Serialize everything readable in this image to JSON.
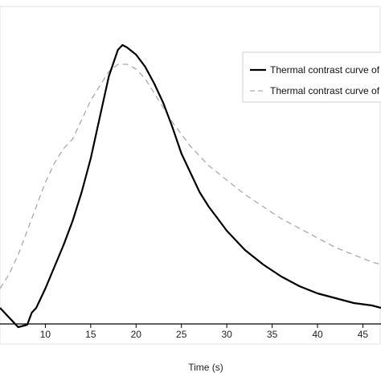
{
  "chart_data": {
    "type": "line",
    "xlabel": "Time (s)",
    "xlim": [
      5,
      47
    ],
    "ylim": [
      -0.15,
      1.25
    ],
    "x_ticks": [
      10,
      15,
      20,
      25,
      30,
      35,
      40,
      45
    ],
    "x_tick_labels": [
      "10",
      "15",
      "20",
      "25",
      "30",
      "35",
      "40",
      "45"
    ],
    "legend_position": "top-right",
    "grid": false,
    "series": [
      {
        "name": "Thermal contrast curve of t",
        "style": "solid",
        "color": "#000000",
        "x": [
          5,
          6,
          7,
          8,
          8.5,
          9,
          10,
          11,
          12,
          13,
          14,
          15,
          16,
          17,
          18,
          18.5,
          19,
          20,
          21,
          22,
          23,
          24,
          25,
          26,
          27,
          28,
          29,
          30,
          32,
          34,
          36,
          38,
          40,
          42,
          44,
          46,
          47
        ],
        "y": [
          0.0,
          -0.04,
          -0.08,
          -0.07,
          -0.02,
          0.0,
          0.08,
          0.17,
          0.26,
          0.36,
          0.48,
          0.62,
          0.79,
          0.96,
          1.07,
          1.09,
          1.08,
          1.05,
          1.0,
          0.93,
          0.85,
          0.75,
          0.64,
          0.56,
          0.48,
          0.42,
          0.37,
          0.32,
          0.24,
          0.18,
          0.13,
          0.09,
          0.06,
          0.04,
          0.02,
          0.01,
          0.0
        ]
      },
      {
        "name": "Thermal contrast curve of t",
        "style": "dashed",
        "color": "#aaaaaa",
        "x": [
          5,
          6,
          7,
          8,
          9,
          10,
          11,
          12,
          13,
          14,
          15,
          16,
          17,
          18,
          19,
          20,
          21,
          22,
          23,
          24,
          25,
          26,
          27,
          28,
          29,
          30,
          32,
          34,
          36,
          38,
          40,
          42,
          44,
          46,
          47
        ],
        "y": [
          0.08,
          0.14,
          0.22,
          0.32,
          0.42,
          0.52,
          0.6,
          0.66,
          0.7,
          0.78,
          0.86,
          0.92,
          0.98,
          1.01,
          1.01,
          0.99,
          0.95,
          0.89,
          0.83,
          0.77,
          0.72,
          0.67,
          0.63,
          0.59,
          0.56,
          0.53,
          0.47,
          0.42,
          0.37,
          0.33,
          0.29,
          0.25,
          0.22,
          0.19,
          0.18
        ]
      }
    ]
  }
}
